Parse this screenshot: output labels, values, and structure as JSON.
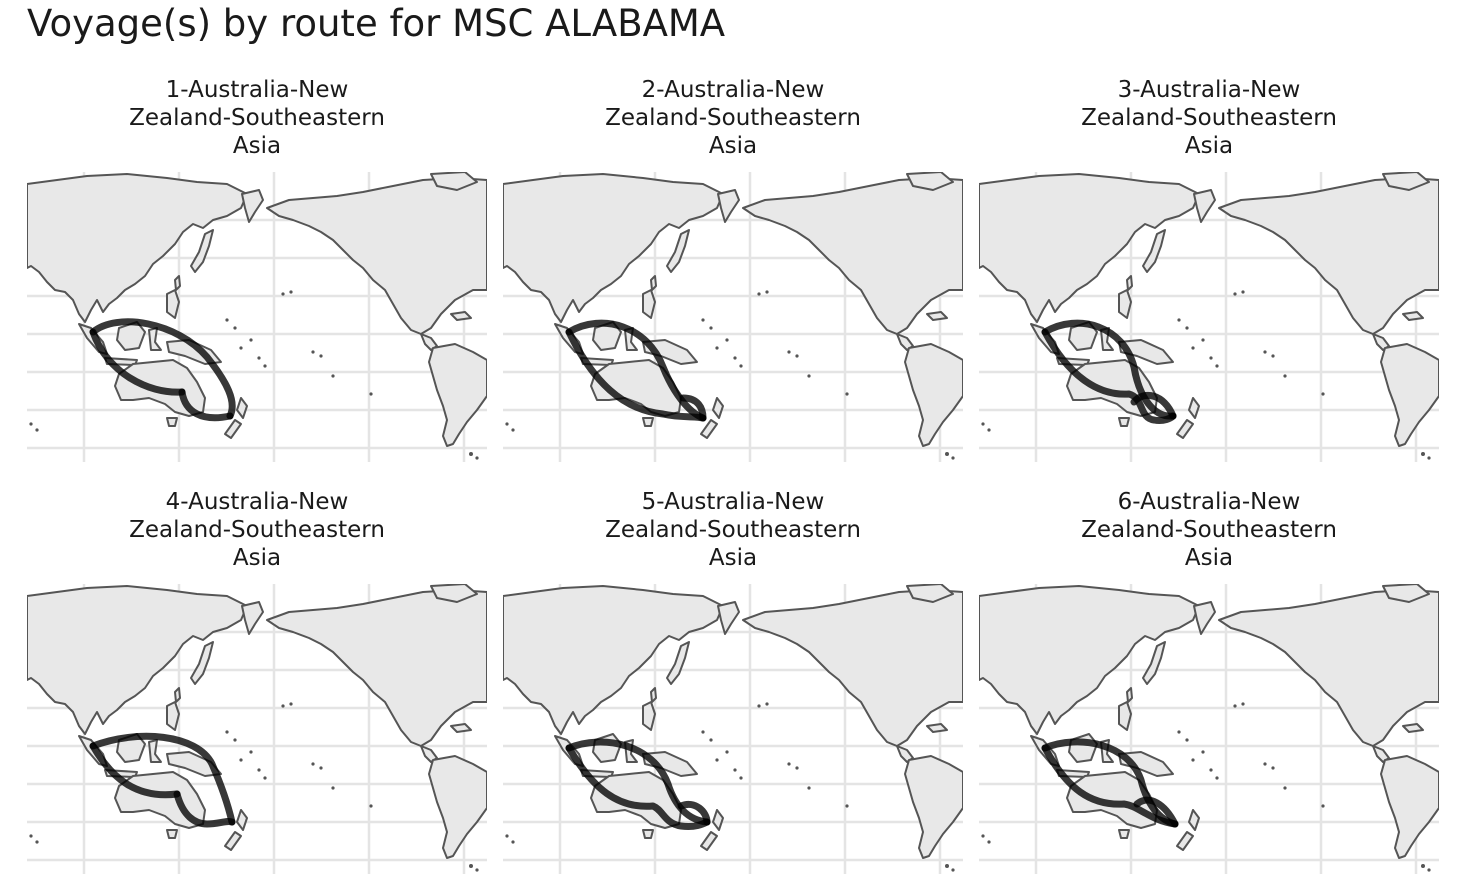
{
  "title": "Voyage(s) by route for MSC ALABAMA",
  "colors": {
    "land_fill": "#e8e8e8",
    "land_stroke": "#555555",
    "grid": "#e4e4e4",
    "route": "#000000"
  },
  "panels": [
    {
      "label_lines": [
        "1-Australia-New",
        "Zealand-Southeastern",
        "Asia"
      ]
    },
    {
      "label_lines": [
        "2-Australia-New",
        "Zealand-Southeastern",
        "Asia"
      ]
    },
    {
      "label_lines": [
        "3-Australia-New",
        "Zealand-Southeastern",
        "Asia"
      ]
    },
    {
      "label_lines": [
        "4-Australia-New",
        "Zealand-Southeastern",
        "Asia"
      ]
    },
    {
      "label_lines": [
        "5-Australia-New",
        "Zealand-Southeastern",
        "Asia"
      ]
    },
    {
      "label_lines": [
        "6-Australia-New",
        "Zealand-Southeastern",
        "Asia"
      ]
    }
  ]
}
